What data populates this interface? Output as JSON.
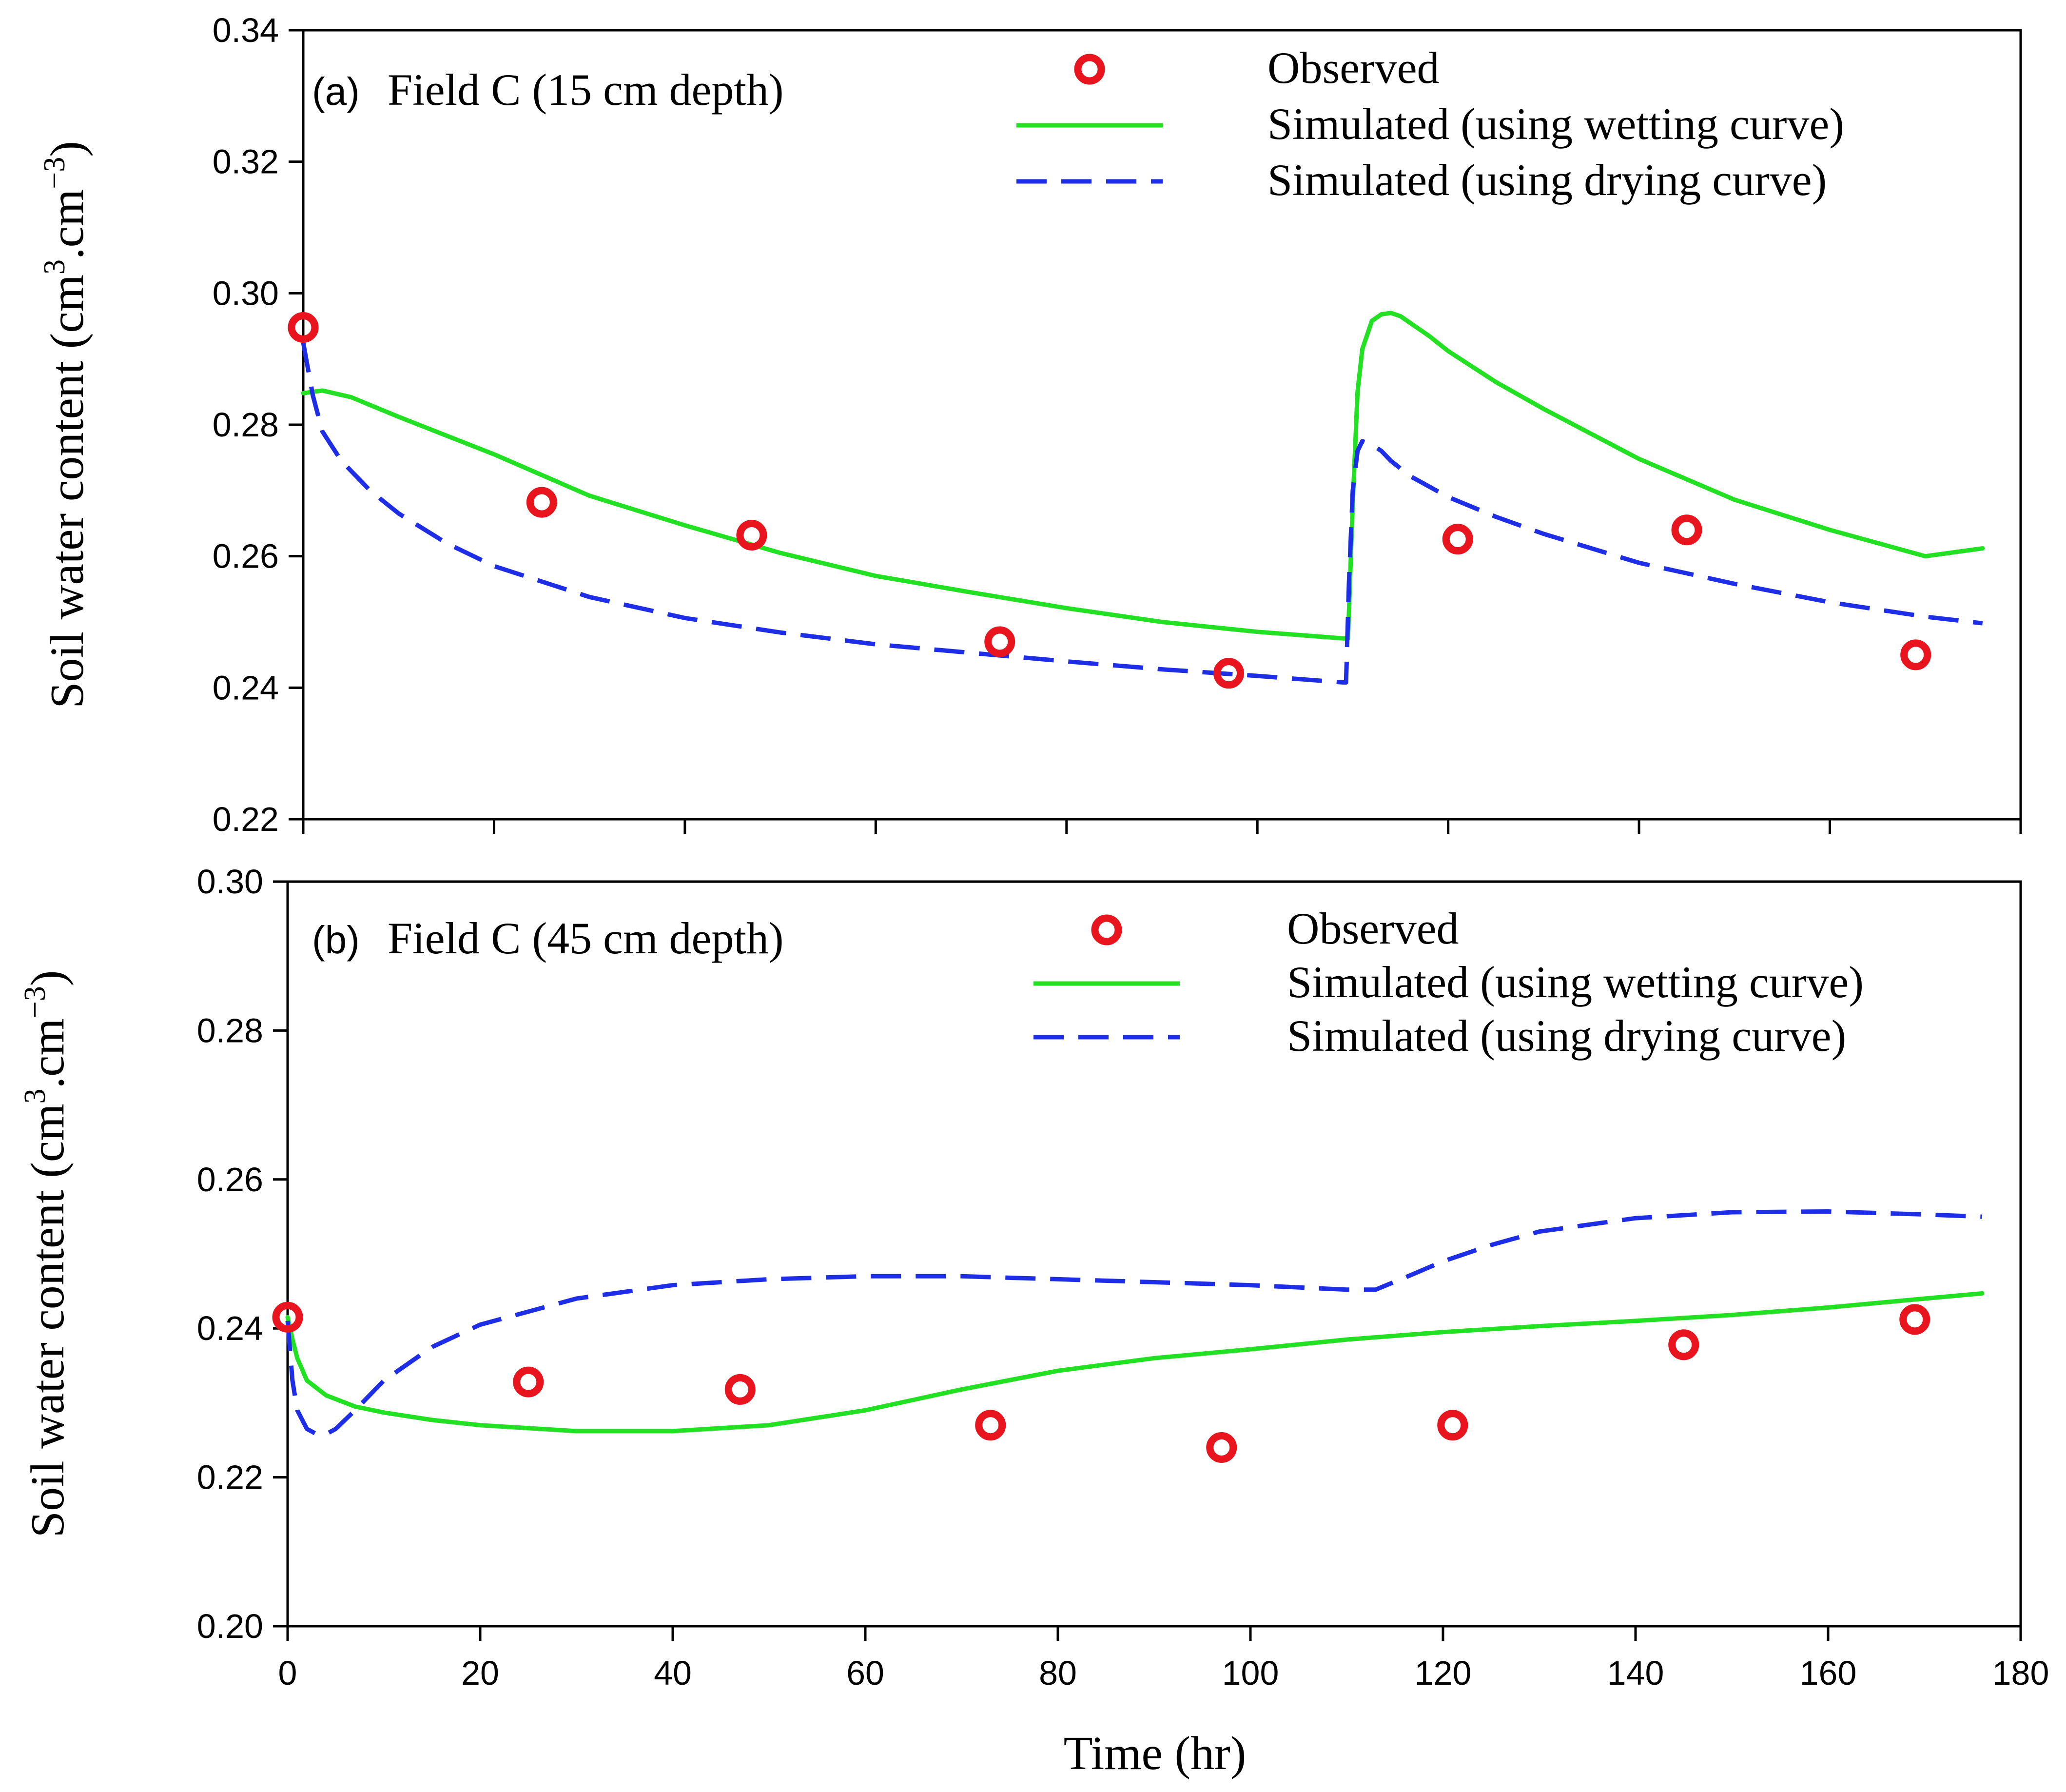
{
  "chart_data": [
    {
      "type": "line",
      "panel_tag": "(a)",
      "title": "Field C (15 cm depth)",
      "xlabel": "",
      "ylabel_main": "Soil water content (cm",
      "ylabel_sup1": "3",
      "ylabel_mid": ".cm",
      "ylabel_sup2": "−3",
      "ylabel_end": ")",
      "xlim": [
        0,
        180
      ],
      "ylim": [
        0.22,
        0.34
      ],
      "x_ticks": [
        "0",
        "20",
        "40",
        "60",
        "80",
        "100",
        "120",
        "140",
        "160",
        "180"
      ],
      "y_ticks": [
        "0.22",
        "0.24",
        "0.26",
        "0.28",
        "0.30",
        "0.32",
        "0.34"
      ],
      "legend": [
        "Observed",
        "Simulated (using wetting curve)",
        "Simulated (using drying curve)"
      ],
      "legend_position": "top-right",
      "series": [
        {
          "name": "Observed",
          "kind": "scatter",
          "color": "#e8141e",
          "x": [
            0,
            25,
            47,
            73,
            97,
            121,
            145,
            169
          ],
          "y": [
            0.2948,
            0.2682,
            0.2632,
            0.247,
            0.2422,
            0.2626,
            0.264,
            0.245
          ]
        },
        {
          "name": "Simulated (using wetting curve)",
          "kind": "line",
          "color": "#22e022",
          "dash": "solid",
          "x": [
            0,
            2,
            5,
            10,
            20,
            30,
            40,
            50,
            60,
            70,
            80,
            90,
            100,
            109,
            109.5,
            110,
            110.5,
            111,
            112,
            113,
            114,
            115,
            116,
            118,
            120,
            125,
            130,
            140,
            150,
            160,
            170,
            176
          ],
          "y": [
            0.2848,
            0.2852,
            0.2842,
            0.2812,
            0.2755,
            0.2692,
            0.2647,
            0.2605,
            0.257,
            0.2545,
            0.2521,
            0.25,
            0.2485,
            0.2475,
            0.2475,
            0.268,
            0.285,
            0.2915,
            0.2958,
            0.2968,
            0.297,
            0.2965,
            0.2955,
            0.2935,
            0.2912,
            0.2865,
            0.2824,
            0.2748,
            0.2686,
            0.264,
            0.26,
            0.2612
          ]
        },
        {
          "name": "Simulated (using drying curve)",
          "kind": "line",
          "color": "#1e2ee6",
          "dash": "dashed",
          "x": [
            0,
            1,
            2,
            4,
            7,
            10,
            15,
            20,
            30,
            40,
            50,
            60,
            70,
            80,
            90,
            100,
            109,
            109.3,
            109.6,
            110,
            110.5,
            111,
            112,
            113,
            114,
            116,
            120,
            125,
            130,
            140,
            150,
            160,
            170,
            176
          ],
          "y": [
            0.2925,
            0.2845,
            0.279,
            0.2745,
            0.27,
            0.2665,
            0.262,
            0.2585,
            0.2538,
            0.2506,
            0.2484,
            0.2466,
            0.2453,
            0.244,
            0.2428,
            0.2418,
            0.2408,
            0.2408,
            0.256,
            0.27,
            0.276,
            0.2775,
            0.277,
            0.276,
            0.2745,
            0.2722,
            0.269,
            0.266,
            0.2634,
            0.259,
            0.2558,
            0.253,
            0.2508,
            0.2498
          ]
        }
      ]
    },
    {
      "type": "line",
      "panel_tag": "(b)",
      "title": "Field C (45 cm depth)",
      "xlabel": "Time (hr)",
      "ylabel_main": "Soil water content (cm",
      "ylabel_sup1": "3",
      "ylabel_mid": ".cm",
      "ylabel_sup2": "−3",
      "ylabel_end": ")",
      "xlim": [
        0,
        180
      ],
      "ylim": [
        0.2,
        0.3
      ],
      "x_ticks": [
        "0",
        "20",
        "40",
        "60",
        "80",
        "100",
        "120",
        "140",
        "160",
        "180"
      ],
      "y_ticks": [
        "0.20",
        "0.22",
        "0.24",
        "0.26",
        "0.28",
        "0.30"
      ],
      "legend": [
        "Observed",
        "Simulated (using wetting curve)",
        "Simulated (using drying curve)"
      ],
      "legend_position": "top-right",
      "series": [
        {
          "name": "Observed",
          "kind": "scatter",
          "color": "#e8141e",
          "x": [
            0,
            25,
            47,
            73,
            97,
            121,
            145,
            169
          ],
          "y": [
            0.2415,
            0.2328,
            0.2318,
            0.227,
            0.224,
            0.227,
            0.2378,
            0.2412
          ]
        },
        {
          "name": "Simulated (using wetting curve)",
          "kind": "line",
          "color": "#22e022",
          "dash": "solid",
          "x": [
            0,
            0.5,
            1,
            2,
            4,
            7,
            10,
            15,
            20,
            30,
            40,
            50,
            60,
            70,
            80,
            90,
            100,
            110,
            120,
            130,
            140,
            150,
            160,
            170,
            176
          ],
          "y": [
            0.2415,
            0.2385,
            0.236,
            0.233,
            0.231,
            0.2295,
            0.2287,
            0.2277,
            0.227,
            0.2262,
            0.2262,
            0.227,
            0.229,
            0.2318,
            0.2343,
            0.236,
            0.2372,
            0.2385,
            0.2395,
            0.2403,
            0.241,
            0.2418,
            0.2428,
            0.244,
            0.2447
          ]
        },
        {
          "name": "Simulated (using drying curve)",
          "kind": "line",
          "color": "#1e2ee6",
          "dash": "dashed",
          "x": [
            0,
            0.5,
            1,
            2,
            3,
            4,
            5,
            7,
            10,
            15,
            20,
            30,
            40,
            50,
            60,
            70,
            80,
            90,
            100,
            110,
            113,
            116,
            120,
            125,
            130,
            140,
            150,
            160,
            170,
            176
          ],
          "y": [
            0.241,
            0.233,
            0.229,
            0.2265,
            0.2258,
            0.2258,
            0.2265,
            0.229,
            0.233,
            0.2375,
            0.2405,
            0.244,
            0.2458,
            0.2466,
            0.247,
            0.247,
            0.2466,
            0.2462,
            0.2458,
            0.2452,
            0.2452,
            0.2468,
            0.249,
            0.2512,
            0.253,
            0.2548,
            0.2556,
            0.2557,
            0.2553,
            0.255
          ]
        }
      ]
    }
  ]
}
